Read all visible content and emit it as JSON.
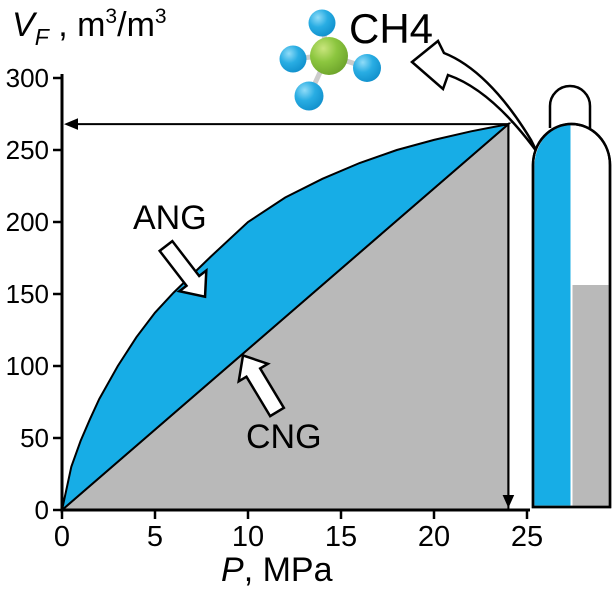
{
  "figure": {
    "y_axis_title": {
      "symbol": "V",
      "subscript": "F",
      "separator": " , ",
      "unit": {
        "m1": "m",
        "e1": "3",
        "slash": "/",
        "m2": "m",
        "e2": "3"
      }
    },
    "x_axis_title": {
      "symbol": "P",
      "rest": ", MPa"
    },
    "labels": {
      "ang": "ANG",
      "cng": "CNG",
      "molecule": "CH4"
    }
  },
  "colors": {
    "ang_fill": "#17ADE6",
    "cng_fill": "#B9B9B9",
    "outline": "#000000",
    "arrow_fill": "#FFFFFF",
    "bond": "#CCCCCC",
    "atom_blue": "#29ADE3",
    "atom_green": "#8CC63F"
  },
  "chart_data": {
    "type": "area",
    "title": "",
    "xlabel": "P, MPa",
    "ylabel": "VF, m3/m3",
    "xlim": [
      0,
      25
    ],
    "ylim": [
      0,
      300
    ],
    "x_ticks": [
      0,
      5,
      10,
      15,
      20,
      25
    ],
    "y_ticks": [
      0,
      50,
      100,
      150,
      200,
      250,
      300
    ],
    "grid": false,
    "legend_position": "none",
    "series": [
      {
        "name": "ANG",
        "x": [
          0,
          0.5,
          1,
          1.5,
          2,
          3,
          4,
          5,
          6,
          8,
          10,
          12,
          14,
          16,
          18,
          20,
          22,
          24
        ],
        "values": [
          0,
          30,
          48,
          63,
          77,
          100,
          120,
          137,
          151,
          176,
          200,
          217,
          230,
          241,
          250,
          257,
          263,
          268
        ]
      },
      {
        "name": "CNG",
        "x": [
          0,
          24
        ],
        "values": [
          0,
          268
        ]
      }
    ],
    "guide": {
      "x": 24,
      "y": 268
    }
  }
}
